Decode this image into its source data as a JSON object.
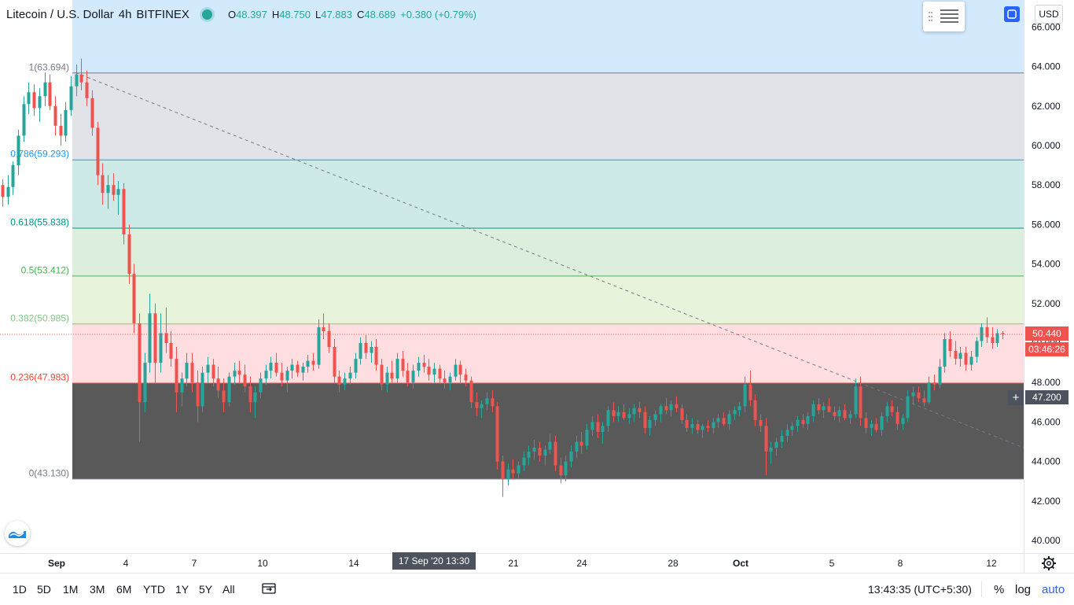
{
  "legend": {
    "symbol": "Litecoin / U.S. Dollar",
    "interval": "4h",
    "exchange": "BITFINEX",
    "o_label": "O",
    "o": "48.397",
    "h_label": "H",
    "h": "48.750",
    "l_label": "L",
    "l": "47.883",
    "c_label": "C",
    "c": "48.689",
    "change": "+0.380 (+0.79%)"
  },
  "currency_button": "USD",
  "price_tags": {
    "last_price": "50.440",
    "countdown": "03:46:26",
    "crosshair_price": "47.200",
    "crosshair_date": "17 Sep '20  13:30"
  },
  "bottom_bar": {
    "ranges": [
      "1D",
      "5D",
      "1M",
      "3M",
      "6M",
      "YTD",
      "1Y",
      "5Y",
      "All"
    ],
    "time": "13:43:35 (UTC+5:30)",
    "percent": "%",
    "log": "log",
    "auto": "auto"
  },
  "icons": {
    "settings": "settings-lines-icon",
    "fullscreen": "fullscreen-icon",
    "goto_date": "goto-date-icon",
    "gear": "gear-icon",
    "logo": "tradingview-logo-icon"
  },
  "colors": {
    "up": "#26a69a",
    "down": "#ef5350",
    "accent": "#2962ff"
  },
  "chart_data": {
    "type": "candlestick",
    "title": "Litecoin / U.S. Dollar, 4h, BITFINEX",
    "y_ticks": [
      "40.000",
      "42.000",
      "44.000",
      "46.000",
      "48.000",
      "50.000",
      "52.000",
      "54.000",
      "56.000",
      "58.000",
      "60.000",
      "62.000",
      "64.000",
      "66.000"
    ],
    "ylim": [
      39.3,
      67.2
    ],
    "x_ticks": [
      {
        "label": "Sep",
        "date": "Sep 1"
      },
      {
        "label": "4",
        "date": "Sep 4"
      },
      {
        "label": "7",
        "date": "Sep 7"
      },
      {
        "label": "10",
        "date": "Sep 10"
      },
      {
        "label": "14",
        "date": "Sep 14"
      },
      {
        "label": "21",
        "date": "Sep 21"
      },
      {
        "label": "24",
        "date": "Sep 24"
      },
      {
        "label": "28",
        "date": "Sep 28"
      },
      {
        "label": "Oct",
        "date": "Oct 1"
      },
      {
        "label": "5",
        "date": "Oct 5"
      },
      {
        "label": "8",
        "date": "Oct 8"
      },
      {
        "label": "12",
        "date": "Oct 12"
      }
    ],
    "fib_levels": [
      {
        "ratio": "1",
        "price": 63.694,
        "label": "1(63.694)",
        "line": "#787b86",
        "fill": "#d1d4dc"
      },
      {
        "ratio": "0.786",
        "price": 59.293,
        "label": "0.786(59.293)",
        "line": "#2196f3",
        "fill": "#bbdefb"
      },
      {
        "ratio": "0.618",
        "price": 55.838,
        "label": "0.618(55.838)",
        "line": "#009688",
        "fill": "#b2dfdb"
      },
      {
        "ratio": "0.5",
        "price": 53.412,
        "label": "0.5(53.412)",
        "line": "#4caf50",
        "fill": "#c8e6c9"
      },
      {
        "ratio": "0.382",
        "price": 50.985,
        "label": "0.382(50.985)",
        "line": "#81c784",
        "fill": "#dcedc8"
      },
      {
        "ratio": "0.236",
        "price": 47.983,
        "label": "0.236(47.983)",
        "line": "#f44336",
        "fill": "#ffcdd2"
      },
      {
        "ratio": "0",
        "price": 43.13,
        "label": "0(43.130)",
        "line": "#787b86",
        "fill": ""
      }
    ],
    "trend_line": {
      "start_price": 63.694,
      "end_price": 44.7
    },
    "last_price": 50.44,
    "crosshair_price": 47.2,
    "candles": [
      [
        58,
        58.3,
        56.9,
        57.4
      ],
      [
        57.4,
        58.5,
        57.0,
        57.9
      ],
      [
        57.9,
        59.2,
        57.5,
        59.0
      ],
      [
        59,
        60.8,
        58.5,
        60.5
      ],
      [
        60.5,
        62.5,
        60.2,
        62.1
      ],
      [
        62.1,
        63.2,
        61.6,
        62.7
      ],
      [
        62.7,
        63.1,
        61.5,
        61.9
      ],
      [
        61.9,
        62.9,
        61.2,
        62.5
      ],
      [
        62.5,
        63.7,
        62.0,
        63.2
      ],
      [
        63.2,
        63.6,
        61.8,
        62.0
      ],
      [
        62,
        62.5,
        60.5,
        61.0
      ],
      [
        61,
        61.6,
        60.0,
        60.5
      ],
      [
        60.5,
        62.2,
        60.2,
        61.8
      ],
      [
        61.8,
        63.5,
        61.5,
        63.0
      ],
      [
        63,
        64.1,
        62.5,
        63.6
      ],
      [
        63.6,
        64.4,
        62.8,
        63.2
      ],
      [
        63.2,
        63.8,
        62.0,
        62.4
      ],
      [
        62.4,
        62.8,
        60.5,
        60.9
      ],
      [
        60.9,
        61.2,
        58.0,
        58.5
      ],
      [
        58.5,
        59.1,
        57.0,
        57.6
      ],
      [
        57.6,
        58.5,
        56.8,
        58.0
      ],
      [
        58,
        58.6,
        57.2,
        57.5
      ],
      [
        57.5,
        58.2,
        56.5,
        57.8
      ],
      [
        57.8,
        58.1,
        55.0,
        55.5
      ],
      [
        55.5,
        56.0,
        53.0,
        53.5
      ],
      [
        53.5,
        54.0,
        50.5,
        51.0
      ],
      [
        51,
        51.5,
        45.0,
        47.0
      ],
      [
        47,
        49.5,
        46.5,
        49.0
      ],
      [
        49,
        52.5,
        48.5,
        51.5
      ],
      [
        51.5,
        52.0,
        48.0,
        49.0
      ],
      [
        49,
        51.5,
        48.5,
        50.5
      ],
      [
        50.5,
        51.8,
        49.5,
        50.0
      ],
      [
        50,
        50.6,
        48.8,
        49.2
      ],
      [
        49.2,
        49.8,
        46.5,
        47.5
      ],
      [
        47.5,
        48.5,
        46.8,
        48.2
      ],
      [
        48.2,
        49.5,
        47.8,
        49.0
      ],
      [
        49,
        49.5,
        47.5,
        48.0
      ],
      [
        48,
        48.6,
        46.0,
        46.8
      ],
      [
        46.8,
        48.8,
        46.5,
        48.5
      ],
      [
        48.5,
        49.3,
        48.0,
        48.9
      ],
      [
        48.9,
        49.2,
        47.8,
        48.2
      ],
      [
        48.2,
        48.8,
        47.2,
        47.6
      ],
      [
        47.6,
        48.2,
        46.5,
        47.0
      ],
      [
        47,
        48.5,
        46.8,
        48.3
      ],
      [
        48.3,
        49.0,
        47.9,
        48.6
      ],
      [
        48.6,
        49.1,
        48.0,
        48.4
      ],
      [
        48.4,
        48.9,
        47.5,
        47.8
      ],
      [
        47.8,
        48.3,
        46.5,
        47.0
      ],
      [
        47,
        47.8,
        46.2,
        47.5
      ],
      [
        47.5,
        48.5,
        47.2,
        48.2
      ],
      [
        48.2,
        48.9,
        47.9,
        48.6
      ],
      [
        48.6,
        49.3,
        48.2,
        49.0
      ],
      [
        49,
        49.5,
        48.3,
        48.5
      ],
      [
        48.5,
        49.0,
        47.8,
        48.1
      ],
      [
        48.1,
        48.8,
        47.5,
        48.6
      ],
      [
        48.6,
        49.2,
        48.2,
        48.9
      ],
      [
        48.9,
        49.1,
        48.3,
        48.5
      ],
      [
        48.5,
        49.0,
        48.1,
        48.8
      ],
      [
        48.8,
        49.4,
        48.5,
        49.1
      ],
      [
        49.1,
        49.5,
        48.6,
        48.9
      ],
      [
        48.9,
        51.2,
        48.7,
        50.8
      ],
      [
        50.8,
        51.5,
        50.2,
        50.6
      ],
      [
        50.6,
        51.0,
        49.5,
        49.8
      ],
      [
        49.8,
        50.2,
        48.0,
        48.3
      ],
      [
        48.3,
        48.6,
        47.5,
        47.9
      ],
      [
        47.9,
        48.5,
        47.6,
        48.2
      ],
      [
        48.2,
        48.8,
        47.9,
        48.5
      ],
      [
        48.5,
        49.5,
        48.2,
        49.2
      ],
      [
        49.2,
        50.3,
        48.9,
        50.0
      ],
      [
        50,
        50.4,
        49.2,
        49.5
      ],
      [
        49.5,
        50.1,
        49.0,
        49.8
      ],
      [
        49.8,
        50.2,
        48.6,
        48.9
      ],
      [
        48.9,
        49.2,
        47.6,
        47.9
      ],
      [
        47.9,
        48.8,
        47.5,
        48.5
      ],
      [
        48.5,
        49.1,
        48.0,
        48.2
      ],
      [
        48.2,
        49.5,
        48.0,
        49.2
      ],
      [
        49.2,
        49.6,
        48.3,
        48.6
      ],
      [
        48.6,
        49.0,
        47.8,
        48.0
      ],
      [
        48,
        48.9,
        47.7,
        48.6
      ],
      [
        48.6,
        49.3,
        48.3,
        49.0
      ],
      [
        49,
        49.4,
        48.5,
        48.8
      ],
      [
        48.8,
        49.2,
        48.1,
        48.4
      ],
      [
        48.4,
        49.0,
        48.0,
        48.7
      ],
      [
        48.7,
        48.9,
        48.0,
        48.2
      ],
      [
        48.2,
        48.6,
        47.7,
        48.0
      ],
      [
        48,
        48.5,
        47.6,
        48.3
      ],
      [
        48.3,
        49.2,
        48.1,
        48.9
      ],
      [
        48.9,
        49.1,
        48.0,
        48.4
      ],
      [
        48.4,
        48.7,
        47.8,
        48.1
      ],
      [
        48.1,
        48.3,
        46.7,
        47.0
      ],
      [
        47,
        47.5,
        46.3,
        46.7
      ],
      [
        46.7,
        47.1,
        46.2,
        46.9
      ],
      [
        46.9,
        47.5,
        46.6,
        47.2
      ],
      [
        47.2,
        47.6,
        46.5,
        46.8
      ],
      [
        46.8,
        47.0,
        43.6,
        44.0
      ],
      [
        44,
        44.3,
        42.2,
        43.1
      ],
      [
        43.1,
        43.9,
        42.8,
        43.6
      ],
      [
        43.6,
        44.1,
        43.1,
        43.4
      ],
      [
        43.4,
        44.0,
        43.1,
        43.8
      ],
      [
        43.8,
        44.5,
        43.5,
        44.2
      ],
      [
        44.2,
        44.8,
        43.8,
        44.5
      ],
      [
        44.5,
        45.1,
        44.1,
        44.7
      ],
      [
        44.7,
        45.0,
        44.0,
        44.3
      ],
      [
        44.3,
        44.8,
        43.8,
        44.6
      ],
      [
        44.6,
        45.4,
        44.4,
        45.0
      ],
      [
        45,
        45.3,
        43.5,
        43.8
      ],
      [
        43.8,
        44.2,
        42.9,
        43.3
      ],
      [
        43.3,
        44.3,
        43.0,
        44.0
      ],
      [
        44,
        44.8,
        43.7,
        44.5
      ],
      [
        44.5,
        45.3,
        44.2,
        45.0
      ],
      [
        45,
        45.5,
        44.4,
        44.8
      ],
      [
        44.8,
        45.9,
        44.6,
        45.6
      ],
      [
        45.6,
        46.3,
        45.3,
        46.0
      ],
      [
        46,
        46.4,
        45.2,
        45.5
      ],
      [
        45.5,
        46.0,
        44.9,
        45.8
      ],
      [
        45.8,
        46.8,
        45.5,
        46.6
      ],
      [
        46.6,
        47.0,
        46.0,
        46.3
      ],
      [
        46.3,
        46.8,
        46.0,
        46.5
      ],
      [
        46.5,
        46.9,
        46.1,
        46.2
      ],
      [
        46.2,
        46.7,
        45.9,
        46.4
      ],
      [
        46.4,
        46.9,
        46.0,
        46.7
      ],
      [
        46.7,
        47.0,
        46.2,
        46.5
      ],
      [
        46.5,
        46.8,
        45.4,
        45.7
      ],
      [
        45.7,
        46.3,
        45.3,
        46.1
      ],
      [
        46.1,
        46.6,
        45.8,
        46.4
      ],
      [
        46.4,
        46.9,
        46.0,
        46.8
      ],
      [
        46.8,
        47.2,
        46.4,
        46.6
      ],
      [
        46.6,
        47.1,
        46.3,
        46.9
      ],
      [
        46.9,
        47.3,
        46.5,
        46.7
      ],
      [
        46.7,
        46.9,
        45.9,
        46.1
      ],
      [
        46.1,
        46.4,
        45.5,
        45.7
      ],
      [
        45.7,
        46.2,
        45.4,
        45.9
      ],
      [
        45.9,
        46.1,
        45.4,
        45.6
      ],
      [
        45.6,
        45.9,
        45.2,
        45.8
      ],
      [
        45.8,
        46.1,
        45.5,
        45.7
      ],
      [
        45.7,
        46.2,
        45.4,
        46.0
      ],
      [
        46,
        46.4,
        45.7,
        46.2
      ],
      [
        46.2,
        46.5,
        45.8,
        45.9
      ],
      [
        45.9,
        46.6,
        45.6,
        46.4
      ],
      [
        46.4,
        46.8,
        46.1,
        46.6
      ],
      [
        46.6,
        47.0,
        46.3,
        46.8
      ],
      [
        46.8,
        48.3,
        46.5,
        47.9
      ],
      [
        47.9,
        48.6,
        46.8,
        47.1
      ],
      [
        47.1,
        47.4,
        45.8,
        46.1
      ],
      [
        46.1,
        46.4,
        45.5,
        45.8
      ],
      [
        45.8,
        46.2,
        43.3,
        44.5
      ],
      [
        44.5,
        45.0,
        43.9,
        44.7
      ],
      [
        44.7,
        45.2,
        44.3,
        45.0
      ],
      [
        45,
        45.6,
        44.7,
        45.3
      ],
      [
        45.3,
        45.9,
        45.0,
        45.6
      ],
      [
        45.6,
        46.0,
        45.3,
        45.8
      ],
      [
        45.8,
        46.3,
        45.5,
        46.1
      ],
      [
        46.1,
        46.4,
        45.7,
        45.9
      ],
      [
        45.9,
        46.5,
        45.6,
        46.3
      ],
      [
        46.3,
        47.1,
        46.0,
        46.9
      ],
      [
        46.9,
        47.2,
        46.4,
        46.6
      ],
      [
        46.6,
        47.0,
        46.2,
        46.8
      ],
      [
        46.8,
        47.2,
        46.5,
        46.5
      ],
      [
        46.5,
        46.8,
        46.1,
        46.3
      ],
      [
        46.3,
        46.8,
        46.0,
        46.6
      ],
      [
        46.6,
        46.9,
        46.1,
        46.2
      ],
      [
        46.2,
        46.6,
        45.9,
        46.4
      ],
      [
        46.4,
        48.2,
        46.2,
        47.8
      ],
      [
        47.8,
        48.3,
        45.8,
        46.2
      ],
      [
        46.2,
        46.5,
        45.4,
        45.7
      ],
      [
        45.7,
        46.1,
        45.3,
        45.9
      ],
      [
        45.9,
        46.2,
        45.5,
        45.6
      ],
      [
        45.6,
        46.5,
        45.3,
        46.3
      ],
      [
        46.3,
        47.0,
        46.0,
        46.8
      ],
      [
        46.8,
        47.1,
        46.3,
        46.5
      ],
      [
        46.5,
        46.8,
        45.6,
        45.9
      ],
      [
        45.9,
        46.4,
        45.6,
        46.2
      ],
      [
        46.2,
        47.6,
        46.0,
        47.3
      ],
      [
        47.3,
        47.8,
        46.9,
        47.5
      ],
      [
        47.5,
        47.8,
        47.0,
        47.2
      ],
      [
        47.2,
        47.6,
        46.8,
        47.0
      ],
      [
        47,
        48.3,
        46.9,
        48.0
      ],
      [
        48,
        48.4,
        47.6,
        47.9
      ],
      [
        47.9,
        49.2,
        47.7,
        48.8
      ],
      [
        48.8,
        50.5,
        48.5,
        50.2
      ],
      [
        50.2,
        50.6,
        49.3,
        49.6
      ],
      [
        49.6,
        50.1,
        48.9,
        49.2
      ],
      [
        49.2,
        49.8,
        48.8,
        49.5
      ],
      [
        49.5,
        49.8,
        48.6,
        48.9
      ],
      [
        48.9,
        49.6,
        48.6,
        49.3
      ],
      [
        49.3,
        50.3,
        49.0,
        50.1
      ],
      [
        50.1,
        51.0,
        49.8,
        50.8
      ],
      [
        50.8,
        51.3,
        50.0,
        50.3
      ],
      [
        50.3,
        50.8,
        49.7,
        50.0
      ],
      [
        50,
        50.7,
        49.8,
        50.5
      ],
      [
        50.5,
        50.6,
        50.2,
        50.44
      ]
    ]
  }
}
